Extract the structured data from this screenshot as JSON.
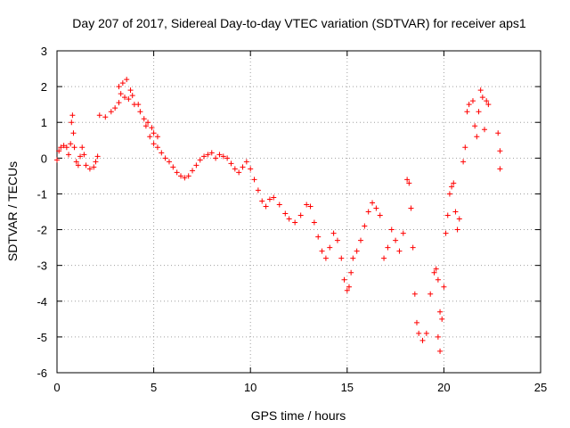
{
  "chart_data": {
    "type": "scatter",
    "title": "Day 207 of 2017, Sidereal Day-to-day VTEC variation (SDTVAR) for receiver aps1",
    "xlabel": "GPS time / hours",
    "ylabel": "SDTVAR / TECUs",
    "xlim": [
      0,
      25
    ],
    "ylim": [
      -6,
      3
    ],
    "xticks": [
      0,
      5,
      10,
      15,
      20,
      25
    ],
    "yticks": [
      -6,
      -5,
      -4,
      -3,
      -2,
      -1,
      0,
      1,
      2,
      3
    ],
    "grid": true,
    "marker": "plus",
    "color": "#ff0000",
    "series": [
      {
        "values": [
          [
            0.0,
            -0.05
          ],
          [
            0.1,
            0.2
          ],
          [
            0.2,
            0.3
          ],
          [
            0.35,
            0.35
          ],
          [
            0.5,
            0.3
          ],
          [
            0.6,
            0.1
          ],
          [
            0.7,
            0.4
          ],
          [
            0.75,
            1.0
          ],
          [
            0.8,
            1.2
          ],
          [
            0.85,
            0.7
          ],
          [
            0.9,
            0.3
          ],
          [
            1.0,
            -0.1
          ],
          [
            1.1,
            -0.2
          ],
          [
            1.2,
            0.05
          ],
          [
            1.3,
            0.3
          ],
          [
            1.4,
            0.1
          ],
          [
            1.5,
            -0.2
          ],
          [
            1.7,
            -0.3
          ],
          [
            1.9,
            -0.25
          ],
          [
            2.0,
            -0.1
          ],
          [
            2.1,
            0.05
          ],
          [
            2.2,
            1.2
          ],
          [
            2.5,
            1.15
          ],
          [
            2.8,
            1.3
          ],
          [
            3.0,
            1.4
          ],
          [
            3.2,
            1.55
          ],
          [
            3.3,
            1.8
          ],
          [
            3.5,
            1.7
          ],
          [
            3.7,
            1.65
          ],
          [
            3.6,
            2.2
          ],
          [
            3.4,
            2.1
          ],
          [
            3.2,
            2.0
          ],
          [
            3.8,
            1.9
          ],
          [
            3.9,
            1.75
          ],
          [
            4.0,
            1.5
          ],
          [
            4.2,
            1.5
          ],
          [
            4.3,
            1.3
          ],
          [
            4.5,
            1.1
          ],
          [
            4.7,
            1.0
          ],
          [
            4.9,
            0.85
          ],
          [
            5.0,
            0.7
          ],
          [
            5.2,
            0.6
          ],
          [
            4.6,
            0.9
          ],
          [
            4.8,
            0.6
          ],
          [
            5.0,
            0.4
          ],
          [
            5.2,
            0.3
          ],
          [
            5.4,
            0.15
          ],
          [
            5.6,
            0.0
          ],
          [
            5.8,
            -0.1
          ],
          [
            6.0,
            -0.25
          ],
          [
            6.2,
            -0.4
          ],
          [
            6.4,
            -0.5
          ],
          [
            6.6,
            -0.55
          ],
          [
            6.8,
            -0.5
          ],
          [
            7.0,
            -0.35
          ],
          [
            7.2,
            -0.2
          ],
          [
            7.4,
            -0.05
          ],
          [
            7.6,
            0.05
          ],
          [
            7.8,
            0.1
          ],
          [
            8.0,
            0.15
          ],
          [
            8.2,
            0.0
          ],
          [
            8.4,
            0.1
          ],
          [
            8.6,
            0.05
          ],
          [
            8.8,
            0.0
          ],
          [
            9.0,
            -0.15
          ],
          [
            9.2,
            -0.3
          ],
          [
            9.4,
            -0.4
          ],
          [
            9.6,
            -0.25
          ],
          [
            9.8,
            -0.1
          ],
          [
            10.0,
            -0.3
          ],
          [
            10.2,
            -0.6
          ],
          [
            10.4,
            -0.9
          ],
          [
            10.6,
            -1.2
          ],
          [
            10.8,
            -1.35
          ],
          [
            11.0,
            -1.15
          ],
          [
            11.2,
            -1.1
          ],
          [
            11.5,
            -1.3
          ],
          [
            11.8,
            -1.55
          ],
          [
            12.0,
            -1.7
          ],
          [
            12.3,
            -1.8
          ],
          [
            12.6,
            -1.6
          ],
          [
            12.9,
            -1.3
          ],
          [
            13.1,
            -1.35
          ],
          [
            13.3,
            -1.8
          ],
          [
            13.5,
            -2.2
          ],
          [
            13.7,
            -2.6
          ],
          [
            13.9,
            -2.8
          ],
          [
            14.1,
            -2.5
          ],
          [
            14.3,
            -2.1
          ],
          [
            14.5,
            -2.3
          ],
          [
            14.7,
            -2.8
          ],
          [
            14.85,
            -3.4
          ],
          [
            15.0,
            -3.7
          ],
          [
            15.1,
            -3.6
          ],
          [
            15.2,
            -3.2
          ],
          [
            15.3,
            -2.8
          ],
          [
            15.5,
            -2.6
          ],
          [
            15.7,
            -2.3
          ],
          [
            15.9,
            -1.9
          ],
          [
            16.1,
            -1.5
          ],
          [
            16.3,
            -1.25
          ],
          [
            16.5,
            -1.4
          ],
          [
            16.7,
            -1.6
          ],
          [
            16.9,
            -2.8
          ],
          [
            17.1,
            -2.5
          ],
          [
            17.3,
            -2.0
          ],
          [
            17.5,
            -2.3
          ],
          [
            17.7,
            -2.6
          ],
          [
            17.9,
            -2.1
          ],
          [
            18.1,
            -0.6
          ],
          [
            18.2,
            -0.7
          ],
          [
            18.3,
            -1.4
          ],
          [
            18.4,
            -2.5
          ],
          [
            18.5,
            -3.8
          ],
          [
            18.6,
            -4.6
          ],
          [
            18.7,
            -4.9
          ],
          [
            18.9,
            -5.1
          ],
          [
            19.1,
            -4.9
          ],
          [
            19.3,
            -3.8
          ],
          [
            19.5,
            -3.2
          ],
          [
            19.6,
            -3.1
          ],
          [
            19.7,
            -3.4
          ],
          [
            19.8,
            -4.3
          ],
          [
            19.7,
            -5.0
          ],
          [
            19.8,
            -5.4
          ],
          [
            19.9,
            -4.5
          ],
          [
            20.0,
            -3.6
          ],
          [
            20.1,
            -2.1
          ],
          [
            20.2,
            -1.6
          ],
          [
            20.3,
            -1.0
          ],
          [
            20.4,
            -0.8
          ],
          [
            20.5,
            -0.7
          ],
          [
            20.6,
            -1.5
          ],
          [
            20.7,
            -2.0
          ],
          [
            20.8,
            -1.7
          ],
          [
            21.0,
            -0.1
          ],
          [
            21.1,
            0.3
          ],
          [
            21.2,
            1.3
          ],
          [
            21.3,
            1.5
          ],
          [
            21.5,
            1.6
          ],
          [
            21.6,
            0.9
          ],
          [
            21.7,
            0.6
          ],
          [
            21.8,
            1.3
          ],
          [
            21.9,
            1.9
          ],
          [
            22.0,
            1.7
          ],
          [
            22.1,
            0.8
          ],
          [
            22.2,
            1.6
          ],
          [
            22.3,
            1.5
          ],
          [
            22.8,
            0.7
          ],
          [
            22.9,
            0.2
          ],
          [
            22.9,
            -0.3
          ]
        ]
      }
    ]
  }
}
